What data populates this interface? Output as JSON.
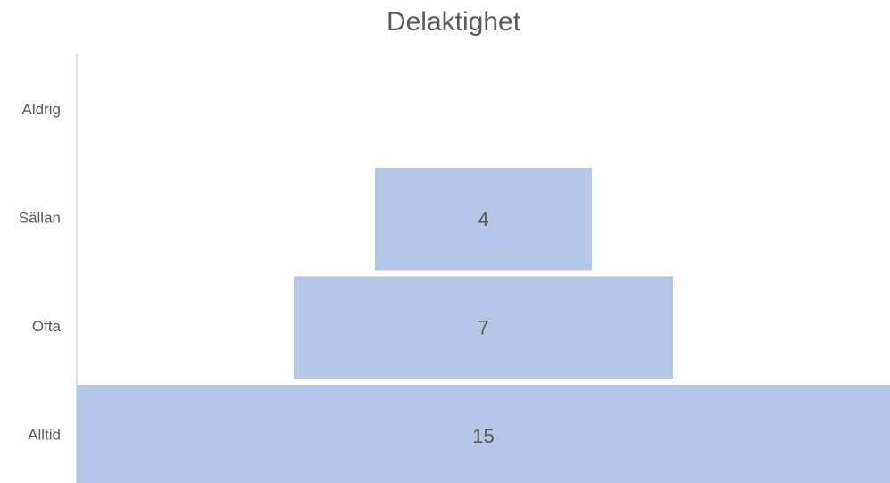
{
  "chart_data": {
    "type": "funnel",
    "title": "Delaktighet",
    "categories": [
      "Aldrig",
      "Sällan",
      "Ofta",
      "Alltid"
    ],
    "values": [
      null,
      4,
      7,
      15
    ],
    "color": "#b4c7e7"
  }
}
